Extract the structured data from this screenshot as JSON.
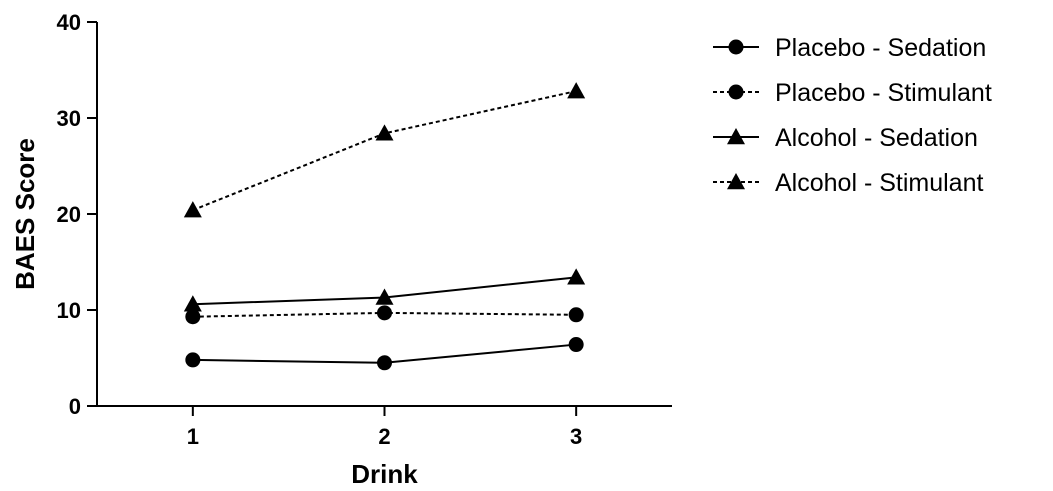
{
  "chart_data": {
    "type": "line",
    "title": "",
    "xlabel": "Drink",
    "ylabel": "BAES Score",
    "x": [
      1,
      2,
      3
    ],
    "x_tick_labels": [
      "1",
      "2",
      "3"
    ],
    "xlim": [
      0.5,
      3.5
    ],
    "ylim": [
      0,
      40
    ],
    "y_ticks": [
      0,
      10,
      20,
      30,
      40
    ],
    "y_tick_labels": [
      "0",
      "10",
      "20",
      "30",
      "40"
    ],
    "grid": false,
    "legend_position": "right",
    "series": [
      {
        "name": "Placebo - Sedation",
        "values": [
          4.8,
          4.5,
          6.4
        ],
        "marker": "circle",
        "line_style": "solid",
        "color": "#000000"
      },
      {
        "name": "Placebo - Stimulant",
        "values": [
          9.3,
          9.7,
          9.5
        ],
        "marker": "circle",
        "line_style": "dashed",
        "color": "#000000"
      },
      {
        "name": "Alcohol - Sedation",
        "values": [
          10.6,
          11.3,
          13.4
        ],
        "marker": "triangle",
        "line_style": "solid",
        "color": "#000000"
      },
      {
        "name": "Alcohol - Stimulant",
        "values": [
          20.4,
          28.4,
          32.8
        ],
        "marker": "triangle",
        "line_style": "dashed",
        "color": "#000000"
      }
    ]
  }
}
